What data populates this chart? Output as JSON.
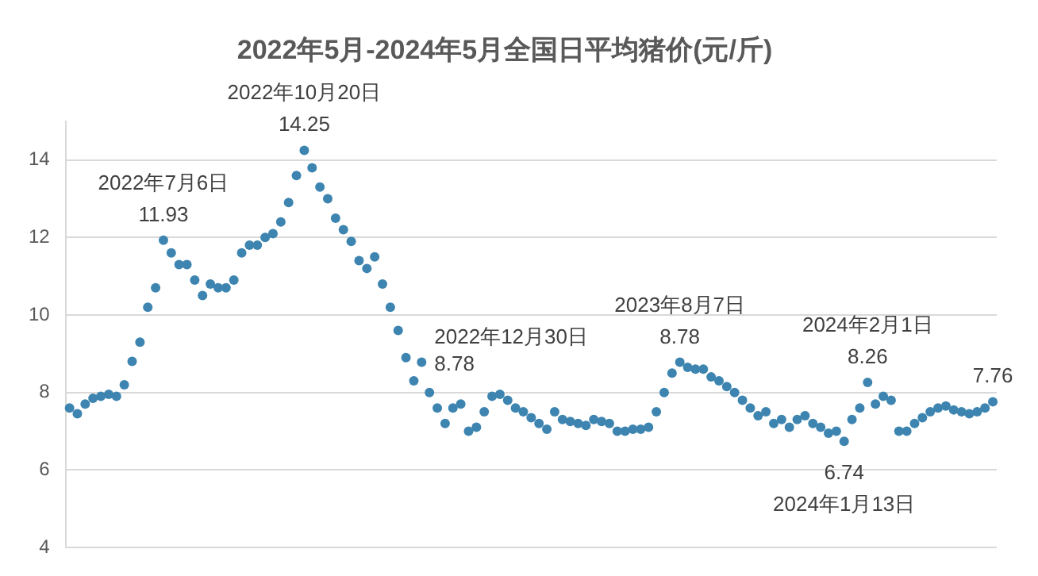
{
  "chart_data": {
    "type": "scatter",
    "title": "2022年5月-2024年5月全国日平均猪价(元/斤)",
    "categories": [
      null,
      null,
      null,
      null,
      null,
      null,
      null,
      null,
      null,
      null,
      null,
      null,
      null,
      null,
      null,
      null,
      null,
      null,
      null,
      null,
      null,
      null,
      null,
      null,
      null,
      null,
      null,
      null,
      null,
      null,
      null,
      null,
      null,
      null,
      null,
      null,
      null,
      null,
      null,
      null,
      null,
      null,
      null,
      null,
      null,
      null,
      null,
      null,
      null,
      null,
      null,
      null,
      null,
      null,
      null,
      null,
      null,
      null,
      null,
      null,
      null,
      null,
      null,
      null,
      null,
      null,
      null,
      null,
      null,
      null,
      null,
      null,
      null,
      null,
      null,
      null,
      null,
      null,
      null,
      null,
      null,
      null,
      null,
      null,
      null,
      null,
      null,
      null,
      null,
      null,
      null,
      null,
      null,
      null,
      null,
      null,
      null,
      null,
      null,
      null,
      null,
      null,
      null,
      null,
      null,
      null,
      null,
      null,
      null,
      null,
      null,
      null,
      null,
      null,
      null,
      null,
      null,
      null,
      null
    ],
    "series": [
      {
        "color": "#3d85b0",
        "values": [
          7.6,
          7.45,
          7.7,
          7.85,
          7.9,
          7.95,
          7.9,
          8.2,
          8.8,
          9.3,
          10.2,
          10.7,
          11.93,
          11.6,
          11.3,
          11.3,
          10.9,
          10.5,
          10.8,
          10.7,
          10.7,
          10.9,
          11.6,
          11.8,
          11.8,
          12.0,
          12.1,
          12.4,
          12.9,
          13.6,
          14.25,
          13.8,
          13.3,
          13.0,
          12.5,
          12.2,
          11.9,
          11.4,
          11.2,
          11.5,
          10.8,
          10.2,
          9.6,
          8.9,
          8.3,
          8.78,
          8.0,
          7.6,
          7.2,
          7.6,
          7.7,
          7.0,
          7.1,
          7.5,
          7.9,
          7.95,
          7.8,
          7.6,
          7.5,
          7.35,
          7.2,
          7.05,
          7.5,
          7.3,
          7.25,
          7.2,
          7.15,
          7.3,
          7.25,
          7.2,
          7.0,
          7.0,
          7.05,
          7.05,
          7.1,
          7.5,
          8.0,
          8.5,
          8.78,
          8.65,
          8.6,
          8.6,
          8.4,
          8.3,
          8.15,
          8.0,
          7.8,
          7.6,
          7.4,
          7.5,
          7.2,
          7.3,
          7.1,
          7.3,
          7.4,
          7.2,
          7.1,
          6.95,
          7.0,
          6.74,
          7.3,
          7.6,
          8.26,
          7.7,
          7.9,
          7.8,
          7.0,
          7.0,
          7.2,
          7.35,
          7.5,
          7.6,
          7.65,
          7.55,
          7.5,
          7.45,
          7.5,
          7.6,
          7.76
        ],
        "value_labels": [
          null,
          null,
          null,
          null,
          null,
          null,
          null,
          null,
          null,
          null,
          null,
          null,
          "11.93",
          null,
          null,
          null,
          null,
          null,
          null,
          null,
          null,
          null,
          null,
          null,
          null,
          null,
          null,
          null,
          null,
          null,
          "14.25",
          null,
          null,
          null,
          null,
          null,
          null,
          null,
          null,
          null,
          null,
          null,
          null,
          null,
          null,
          "8.78",
          null,
          null,
          null,
          null,
          null,
          null,
          null,
          null,
          null,
          null,
          null,
          null,
          null,
          null,
          null,
          null,
          null,
          null,
          null,
          null,
          null,
          null,
          null,
          null,
          null,
          null,
          null,
          null,
          null,
          null,
          null,
          null,
          "8.78",
          null,
          null,
          null,
          null,
          null,
          null,
          null,
          null,
          null,
          null,
          null,
          null,
          null,
          null,
          null,
          null,
          null,
          null,
          null,
          null,
          "6.74",
          null,
          null,
          "8.26",
          null,
          null,
          null,
          null,
          null,
          null,
          null,
          null,
          null,
          null,
          null,
          null,
          null,
          null,
          null,
          "7.76"
        ]
      }
    ],
    "annotations": [
      "2022年7月6日",
      "2022年10月20日",
      "2022年12月30日",
      "2023年8月7日",
      "2024年1月13日",
      "2024年2月1日"
    ],
    "ylim": [
      4,
      15
    ],
    "yticks": [
      4,
      6,
      8,
      10,
      12,
      14
    ],
    "grid": "y",
    "marker": "circle",
    "legend": false
  }
}
